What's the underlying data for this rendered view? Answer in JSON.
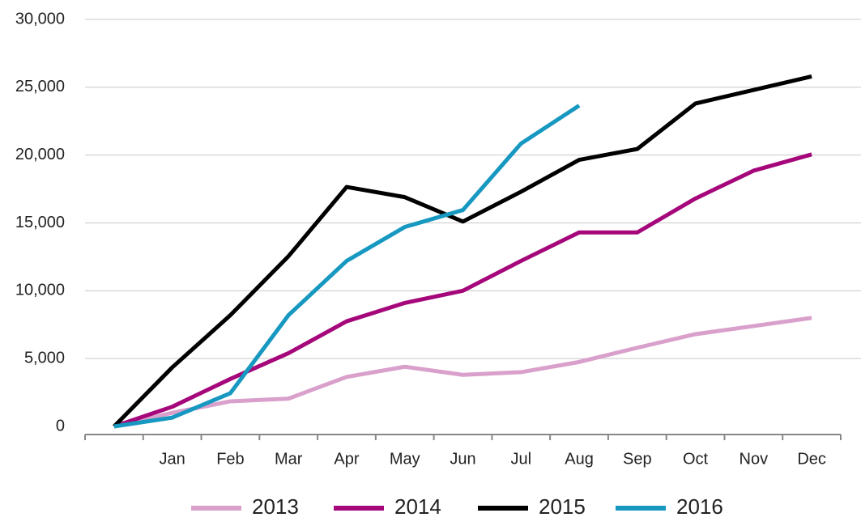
{
  "chart_data": {
    "type": "line",
    "categories": [
      null,
      "Jan",
      "Feb",
      "Mar",
      "Apr",
      "May",
      "Jun",
      "Jul",
      "Aug",
      "Sep",
      "Oct",
      "Nov",
      "Dec"
    ],
    "series": [
      {
        "name": "2013",
        "color": "#d9a0cc",
        "values": [
          0,
          1000,
          1850,
          2050,
          3650,
          4400,
          3800,
          4000,
          4750,
          5800,
          6800,
          7400,
          8000
        ]
      },
      {
        "name": "2014",
        "color": "#a5077b",
        "values": [
          0,
          1450,
          3500,
          5400,
          7750,
          9100,
          10000,
          12200,
          14300,
          14300,
          16800,
          18850,
          20050
        ]
      },
      {
        "name": "2015",
        "color": "#000000",
        "values": [
          0,
          4350,
          8200,
          12550,
          17650,
          16900,
          15100,
          17300,
          19650,
          20450,
          23800,
          24800,
          25800
        ]
      },
      {
        "name": "2016",
        "color": "#1798c1",
        "values": [
          0,
          650,
          2450,
          8200,
          12200,
          14700,
          15950,
          20850,
          23650,
          null,
          null,
          null,
          null
        ]
      }
    ],
    "ylim": [
      0,
      30000
    ],
    "yticks": [
      0,
      {
        "value": 5000,
        "label": "5,000"
      },
      {
        "value": 10000,
        "label": "10,000"
      },
      {
        "value": 15000,
        "label": "15,000"
      },
      {
        "value": 20000,
        "label": "20,000"
      },
      {
        "value": 25000,
        "label": "25,000"
      },
      {
        "value": 30000,
        "label": "30,000"
      }
    ],
    "grid": true,
    "legend": "bottom"
  }
}
